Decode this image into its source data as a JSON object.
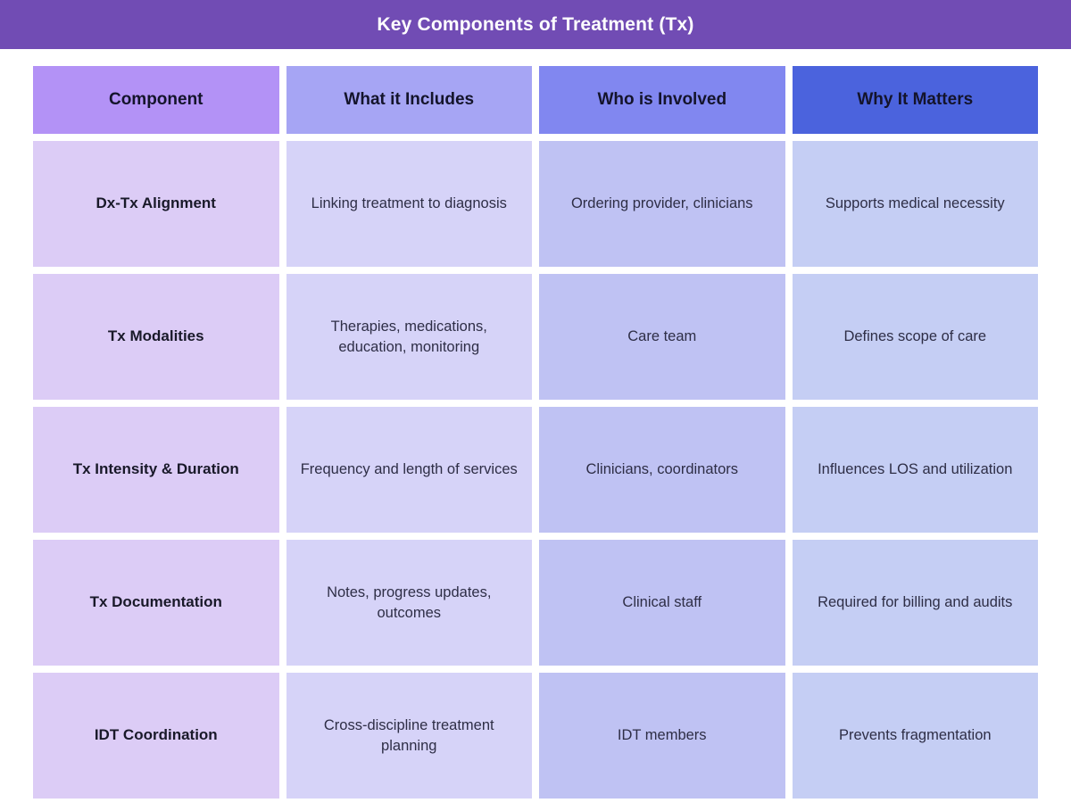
{
  "title": "Key Components of Treatment (Tx)",
  "colors": {
    "title_bar": "#714CB4",
    "header_component": "#B392F6",
    "header_includes": "#A6A5F4",
    "header_involved": "#8187F0",
    "header_matters": "#4B63DD",
    "col_component": "#DCCCF6",
    "col_includes": "#D6D3F8",
    "col_involved": "#BFC2F3",
    "col_matters": "#C5CEF4"
  },
  "table": {
    "column_keys": [
      "component",
      "includes",
      "involved",
      "matters"
    ],
    "columns": [
      {
        "label": "Component"
      },
      {
        "label": "What it Includes"
      },
      {
        "label": "Who is Involved"
      },
      {
        "label": "Why It Matters"
      }
    ],
    "rows": [
      {
        "component": "Dx-Tx Alignment",
        "includes": "Linking treatment to diagnosis",
        "involved": "Ordering provider, clinicians",
        "matters": "Supports medical necessity"
      },
      {
        "component": "Tx Modalities",
        "includes": "Therapies, medications, education, monitoring",
        "involved": "Care team",
        "matters": "Defines scope of care"
      },
      {
        "component": "Tx Intensity & Duration",
        "includes": "Frequency and length of services",
        "involved": "Clinicians, coordinators",
        "matters": "Influences LOS and utilization"
      },
      {
        "component": "Tx Documentation",
        "includes": "Notes, progress updates, outcomes",
        "involved": "Clinical staff",
        "matters": "Required for billing and audits"
      },
      {
        "component": "IDT Coordination",
        "includes": "Cross-discipline treatment planning",
        "involved": "IDT members",
        "matters": "Prevents fragmentation"
      }
    ]
  }
}
